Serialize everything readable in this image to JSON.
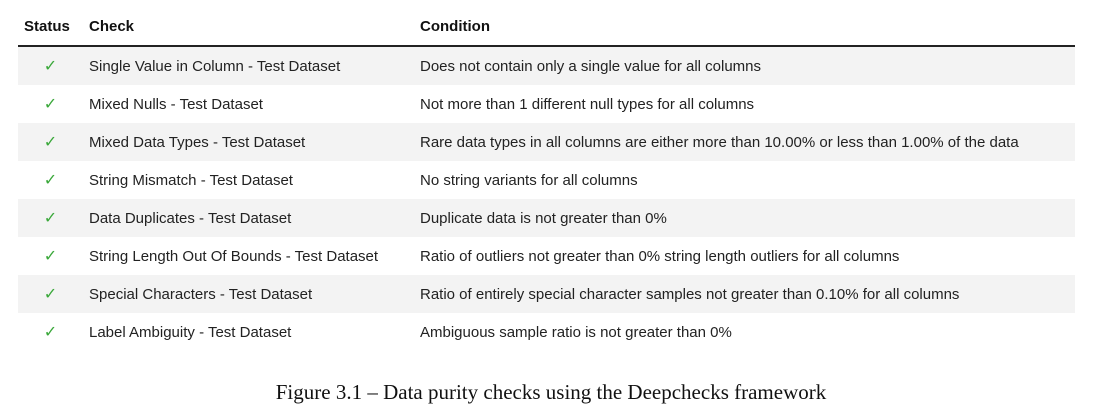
{
  "table": {
    "headers": {
      "status": "Status",
      "check": "Check",
      "condition": "Condition"
    },
    "status_color": "#3aa83a",
    "rows": [
      {
        "status": "✓",
        "check": "Single Value in Column - Test Dataset",
        "condition": "Does not contain only a single value for all columns"
      },
      {
        "status": "✓",
        "check": "Mixed Nulls - Test Dataset",
        "condition": "Not more than 1 different null types for all columns"
      },
      {
        "status": "✓",
        "check": "Mixed Data Types - Test Dataset",
        "condition": "Rare data types in all columns are either more than 10.00% or less than 1.00% of the data"
      },
      {
        "status": "✓",
        "check": "String Mismatch - Test Dataset",
        "condition": "No string variants for all columns"
      },
      {
        "status": "✓",
        "check": "Data Duplicates - Test Dataset",
        "condition": "Duplicate data is not greater than 0%"
      },
      {
        "status": "✓",
        "check": "String Length Out Of Bounds - Test Dataset",
        "condition": "Ratio of outliers not greater than 0% string length outliers for all columns"
      },
      {
        "status": "✓",
        "check": "Special Characters - Test Dataset",
        "condition": "Ratio of entirely special character samples not greater than 0.10% for all columns"
      },
      {
        "status": "✓",
        "check": "Label Ambiguity - Test Dataset",
        "condition": "Ambiguous sample ratio is not greater than 0%"
      }
    ]
  },
  "caption": "Figure 3.1 – Data purity checks using the Deepchecks framework"
}
